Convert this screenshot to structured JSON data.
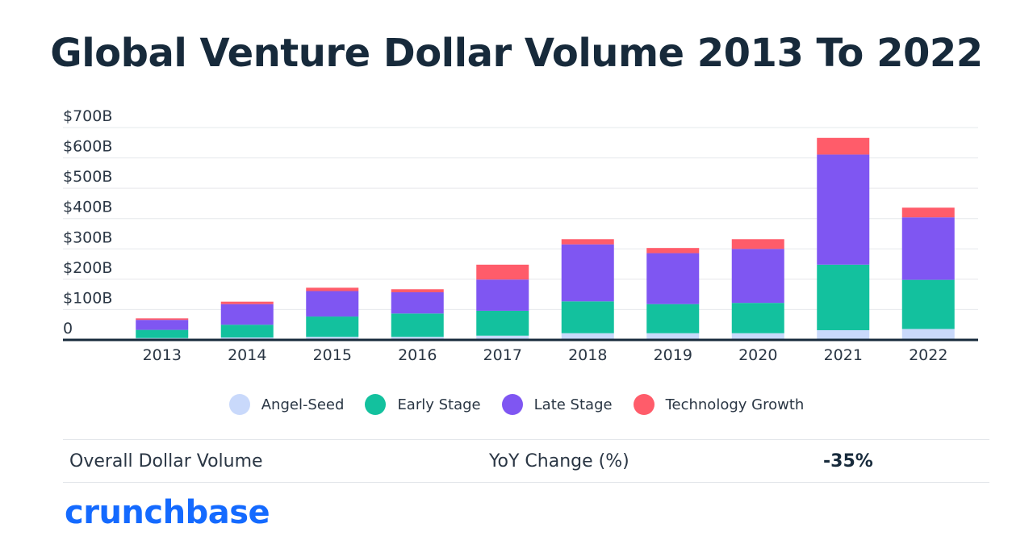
{
  "title": "Global Venture Dollar Volume 2013 To 2022",
  "chart_data": {
    "type": "bar",
    "stacked": true,
    "categories": [
      "2013",
      "2014",
      "2015",
      "2016",
      "2017",
      "2018",
      "2019",
      "2020",
      "2021",
      "2022"
    ],
    "series": [
      {
        "name": "Angel-Seed",
        "color": "#c9d9fb",
        "values": [
          6,
          8,
          10,
          10,
          14,
          22,
          22,
          22,
          32,
          36
        ]
      },
      {
        "name": "Early Stage",
        "color": "#13c19e",
        "values": [
          27,
          42,
          67,
          77,
          82,
          105,
          96,
          100,
          216,
          162
        ]
      },
      {
        "name": "Late Stage",
        "color": "#7f56f2",
        "values": [
          33,
          68,
          84,
          70,
          103,
          188,
          168,
          178,
          363,
          206
        ]
      },
      {
        "name": "Technology Growth",
        "color": "#ff5c6a",
        "values": [
          5,
          8,
          11,
          10,
          49,
          17,
          17,
          32,
          55,
          32
        ]
      }
    ],
    "yticks": [
      "$700B",
      "$600B",
      "$500B",
      "$400B",
      "$300B",
      "$200B",
      "$100B",
      "0"
    ],
    "ylim": [
      0,
      700
    ],
    "grid": true,
    "legend_position": "bottom"
  },
  "summary": {
    "label": "Overall Dollar Volume",
    "yoy_label": "YoY Change (%)",
    "yoy_value": "-35%"
  },
  "brand": {
    "logo_text": "crunchbase",
    "color": "#146aff"
  }
}
